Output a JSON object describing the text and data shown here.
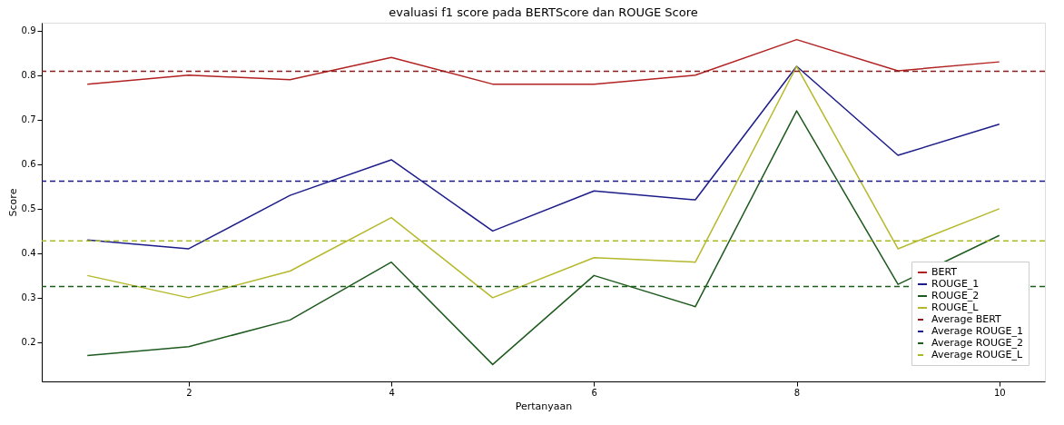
{
  "chart_data": {
    "type": "line",
    "title": "evaluasi f1 score pada BERTScore dan ROUGE Score",
    "xlabel": "Pertanyaan",
    "ylabel": "Score",
    "x": [
      1,
      2,
      3,
      4,
      5,
      6,
      7,
      8,
      9,
      10
    ],
    "series": [
      {
        "name": "BERT",
        "color": "#b22222",
        "values": [
          0.78,
          0.8,
          0.79,
          0.84,
          0.78,
          0.78,
          0.8,
          0.88,
          0.81,
          0.83
        ]
      },
      {
        "name": "ROUGE_1",
        "color": "#1c1c8a",
        "values": [
          0.43,
          0.41,
          0.53,
          0.61,
          0.45,
          0.54,
          0.52,
          0.82,
          0.62,
          0.69
        ]
      },
      {
        "name": "ROUGE_2",
        "color": "#1e5a1e",
        "values": [
          0.17,
          0.19,
          0.25,
          0.38,
          0.15,
          0.35,
          0.28,
          0.72,
          0.33,
          0.44
        ]
      },
      {
        "name": "ROUGE_L",
        "color": "#b5b82a",
        "values": [
          0.35,
          0.3,
          0.36,
          0.48,
          0.3,
          0.39,
          0.38,
          0.82,
          0.41,
          0.5
        ]
      }
    ],
    "ref_lines": [
      {
        "axis": "y",
        "value": 0.809,
        "label": "Average BERT",
        "color": "#8b1a1a",
        "line_style": "dashed"
      },
      {
        "axis": "y",
        "value": 0.562,
        "label": "Average ROUGE_1",
        "color": "#1a1a8c",
        "line_style": "dashed"
      },
      {
        "axis": "y",
        "value": 0.325,
        "label": "Average ROUGE_2",
        "color": "#1a5e1a",
        "line_style": "dashed"
      },
      {
        "axis": "y",
        "value": 0.428,
        "label": "Average ROUGE_L",
        "color": "#aabb22",
        "line_style": "dashed"
      }
    ],
    "xlim": [
      0.55,
      10.45
    ],
    "xticks": [
      2,
      4,
      6,
      8,
      10
    ],
    "ylim": [
      0.112,
      0.918
    ],
    "yticks": [
      0.2,
      0.3,
      0.4,
      0.5,
      0.6,
      0.7,
      0.8,
      0.9
    ],
    "grid": false,
    "legend": "bottom right",
    "marker": "none",
    "line_style": "solid"
  }
}
